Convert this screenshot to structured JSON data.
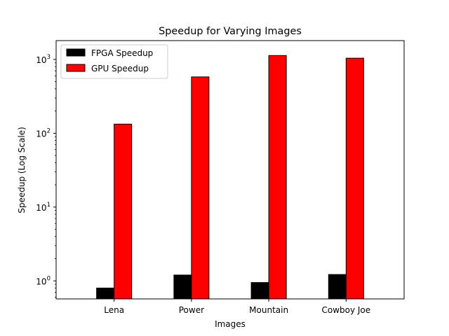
{
  "chart_data": {
    "type": "bar",
    "title": "Speedup for Varying Images",
    "xlabel": "Images",
    "ylabel": "Speedup (Log Scale)",
    "yscale": "log",
    "ylim": [
      0.57,
      1800
    ],
    "y_ticks": [
      {
        "value": 1,
        "label_base": "10",
        "label_exp": "0"
      },
      {
        "value": 10,
        "label_base": "10",
        "label_exp": "1"
      },
      {
        "value": 100,
        "label_base": "10",
        "label_exp": "2"
      },
      {
        "value": 1000,
        "label_base": "10",
        "label_exp": "3"
      }
    ],
    "categories": [
      "Lena",
      "Power",
      "Mountain",
      "Cowboy Joe"
    ],
    "series": [
      {
        "name": "FPGA Speedup",
        "color": "#000000",
        "values": [
          0.8,
          1.2,
          0.95,
          1.22
        ]
      },
      {
        "name": "GPU Speedup",
        "color": "#ff0000",
        "values": [
          133,
          580,
          1130,
          1040
        ]
      }
    ],
    "legend_position": "top-left",
    "grid": false
  }
}
